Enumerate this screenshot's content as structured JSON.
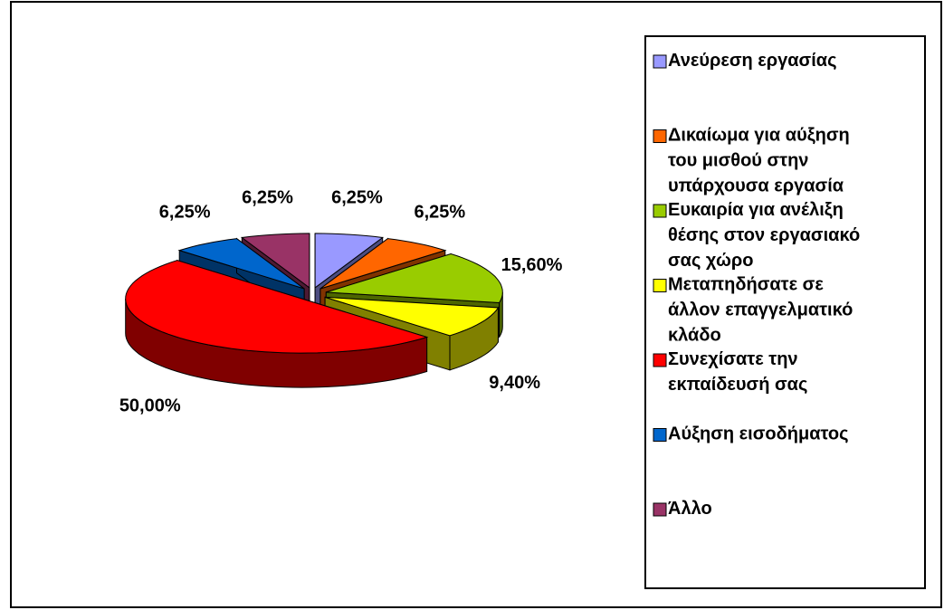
{
  "chart_data": {
    "type": "pie3d",
    "categories": [
      "Ανεύρεση εργασίας",
      "Δικαίωμα για αύξηση του μισθού στην υπάρχουσα εργασία",
      "Ευκαιρία για ανέλιξη θέσης στον εργασιακό σας χώρο",
      "Μεταπηδήσατε σε άλλον επαγγελματικό κλάδο",
      "Συνεχίσατε την εκπαίδευσή σας",
      "Αύξηση εισοδήματος",
      "Άλλο"
    ],
    "values": [
      6.25,
      6.25,
      15.6,
      9.4,
      50,
      6.25,
      6.25
    ],
    "value_labels": [
      "6,25%",
      "6,25%",
      "15,60%",
      "9,40%",
      "50,00%",
      "6,25%",
      "6,25%"
    ],
    "colors": [
      "#9999ff",
      "#ff6600",
      "#99cc00",
      "#ffff00",
      "#ff0000",
      "#0066cc",
      "#993366"
    ],
    "legend": "right"
  }
}
